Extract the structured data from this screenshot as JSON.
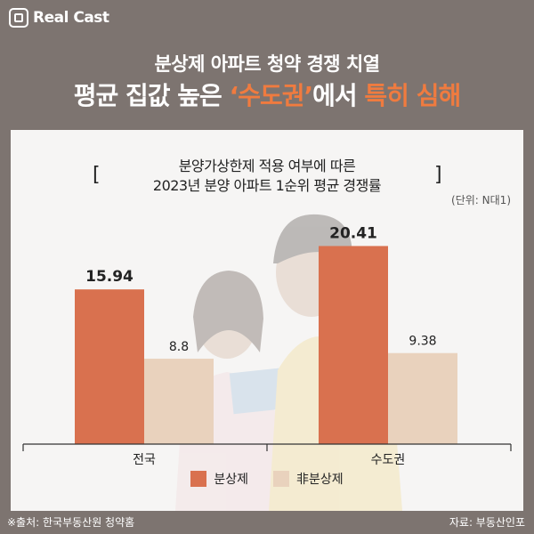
{
  "brand": {
    "name": "Real Cast"
  },
  "headline": {
    "line1": "분상제 아파트 청약 경쟁 치열",
    "line2_pre": "평균 집값 높은 ",
    "line2_highlight": "‘수도권’",
    "line2_mid": "에서 ",
    "line2_emphasis": "특히 심해"
  },
  "chart_data": {
    "type": "bar",
    "title_line1": "분양가상한제 적용 여부에 따른",
    "title_line2": "2023년 분양 아파트 1순위 평균 경쟁률",
    "unit": "(단위: N대1)",
    "categories": [
      "전국",
      "수도권"
    ],
    "series": [
      {
        "name": "분상제",
        "color": "#d9714f",
        "values": [
          15.94,
          20.41
        ],
        "labels": [
          "15.94",
          "20.41"
        ]
      },
      {
        "name": "非분상제",
        "color": "#e9d2bd",
        "values": [
          8.8,
          9.38
        ],
        "labels": [
          "8.8",
          "9.38"
        ]
      }
    ],
    "ylim": [
      0,
      23.2
    ],
    "legend": "bottom"
  },
  "footer": {
    "source_left": "※출처: 한국부동산원 청약홈",
    "source_right": "자료: 부동산인포"
  },
  "colors": {
    "background": "#7d7470",
    "panel": "#f6f5f4",
    "accent": "#f07b3f"
  }
}
